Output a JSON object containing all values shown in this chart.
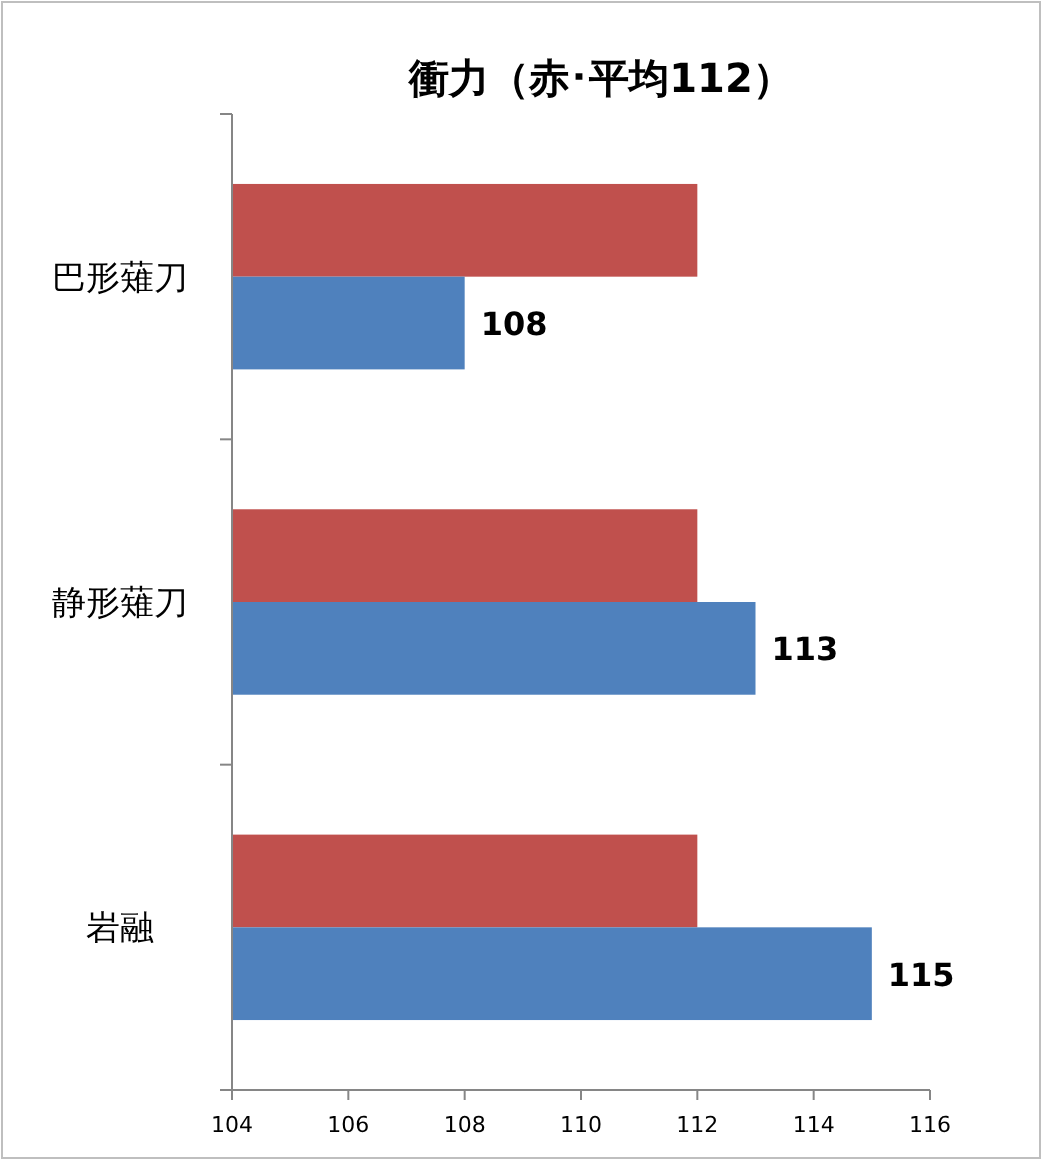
{
  "chart_data": {
    "type": "bar",
    "orientation": "horizontal",
    "title": "衝力（赤･平均112）",
    "categories": [
      "巴形薙刀",
      "静形薙刀",
      "岩融"
    ],
    "series": [
      {
        "color": "#c0504d",
        "values": [
          112,
          112,
          112
        ]
      },
      {
        "color": "#4f81bd",
        "values": [
          108,
          113,
          115
        ],
        "value_labels": [
          "108",
          "113",
          "115"
        ]
      }
    ],
    "xlim": [
      104,
      116
    ],
    "xticks": [
      104,
      106,
      108,
      110,
      112,
      114,
      116
    ],
    "grid": false
  }
}
